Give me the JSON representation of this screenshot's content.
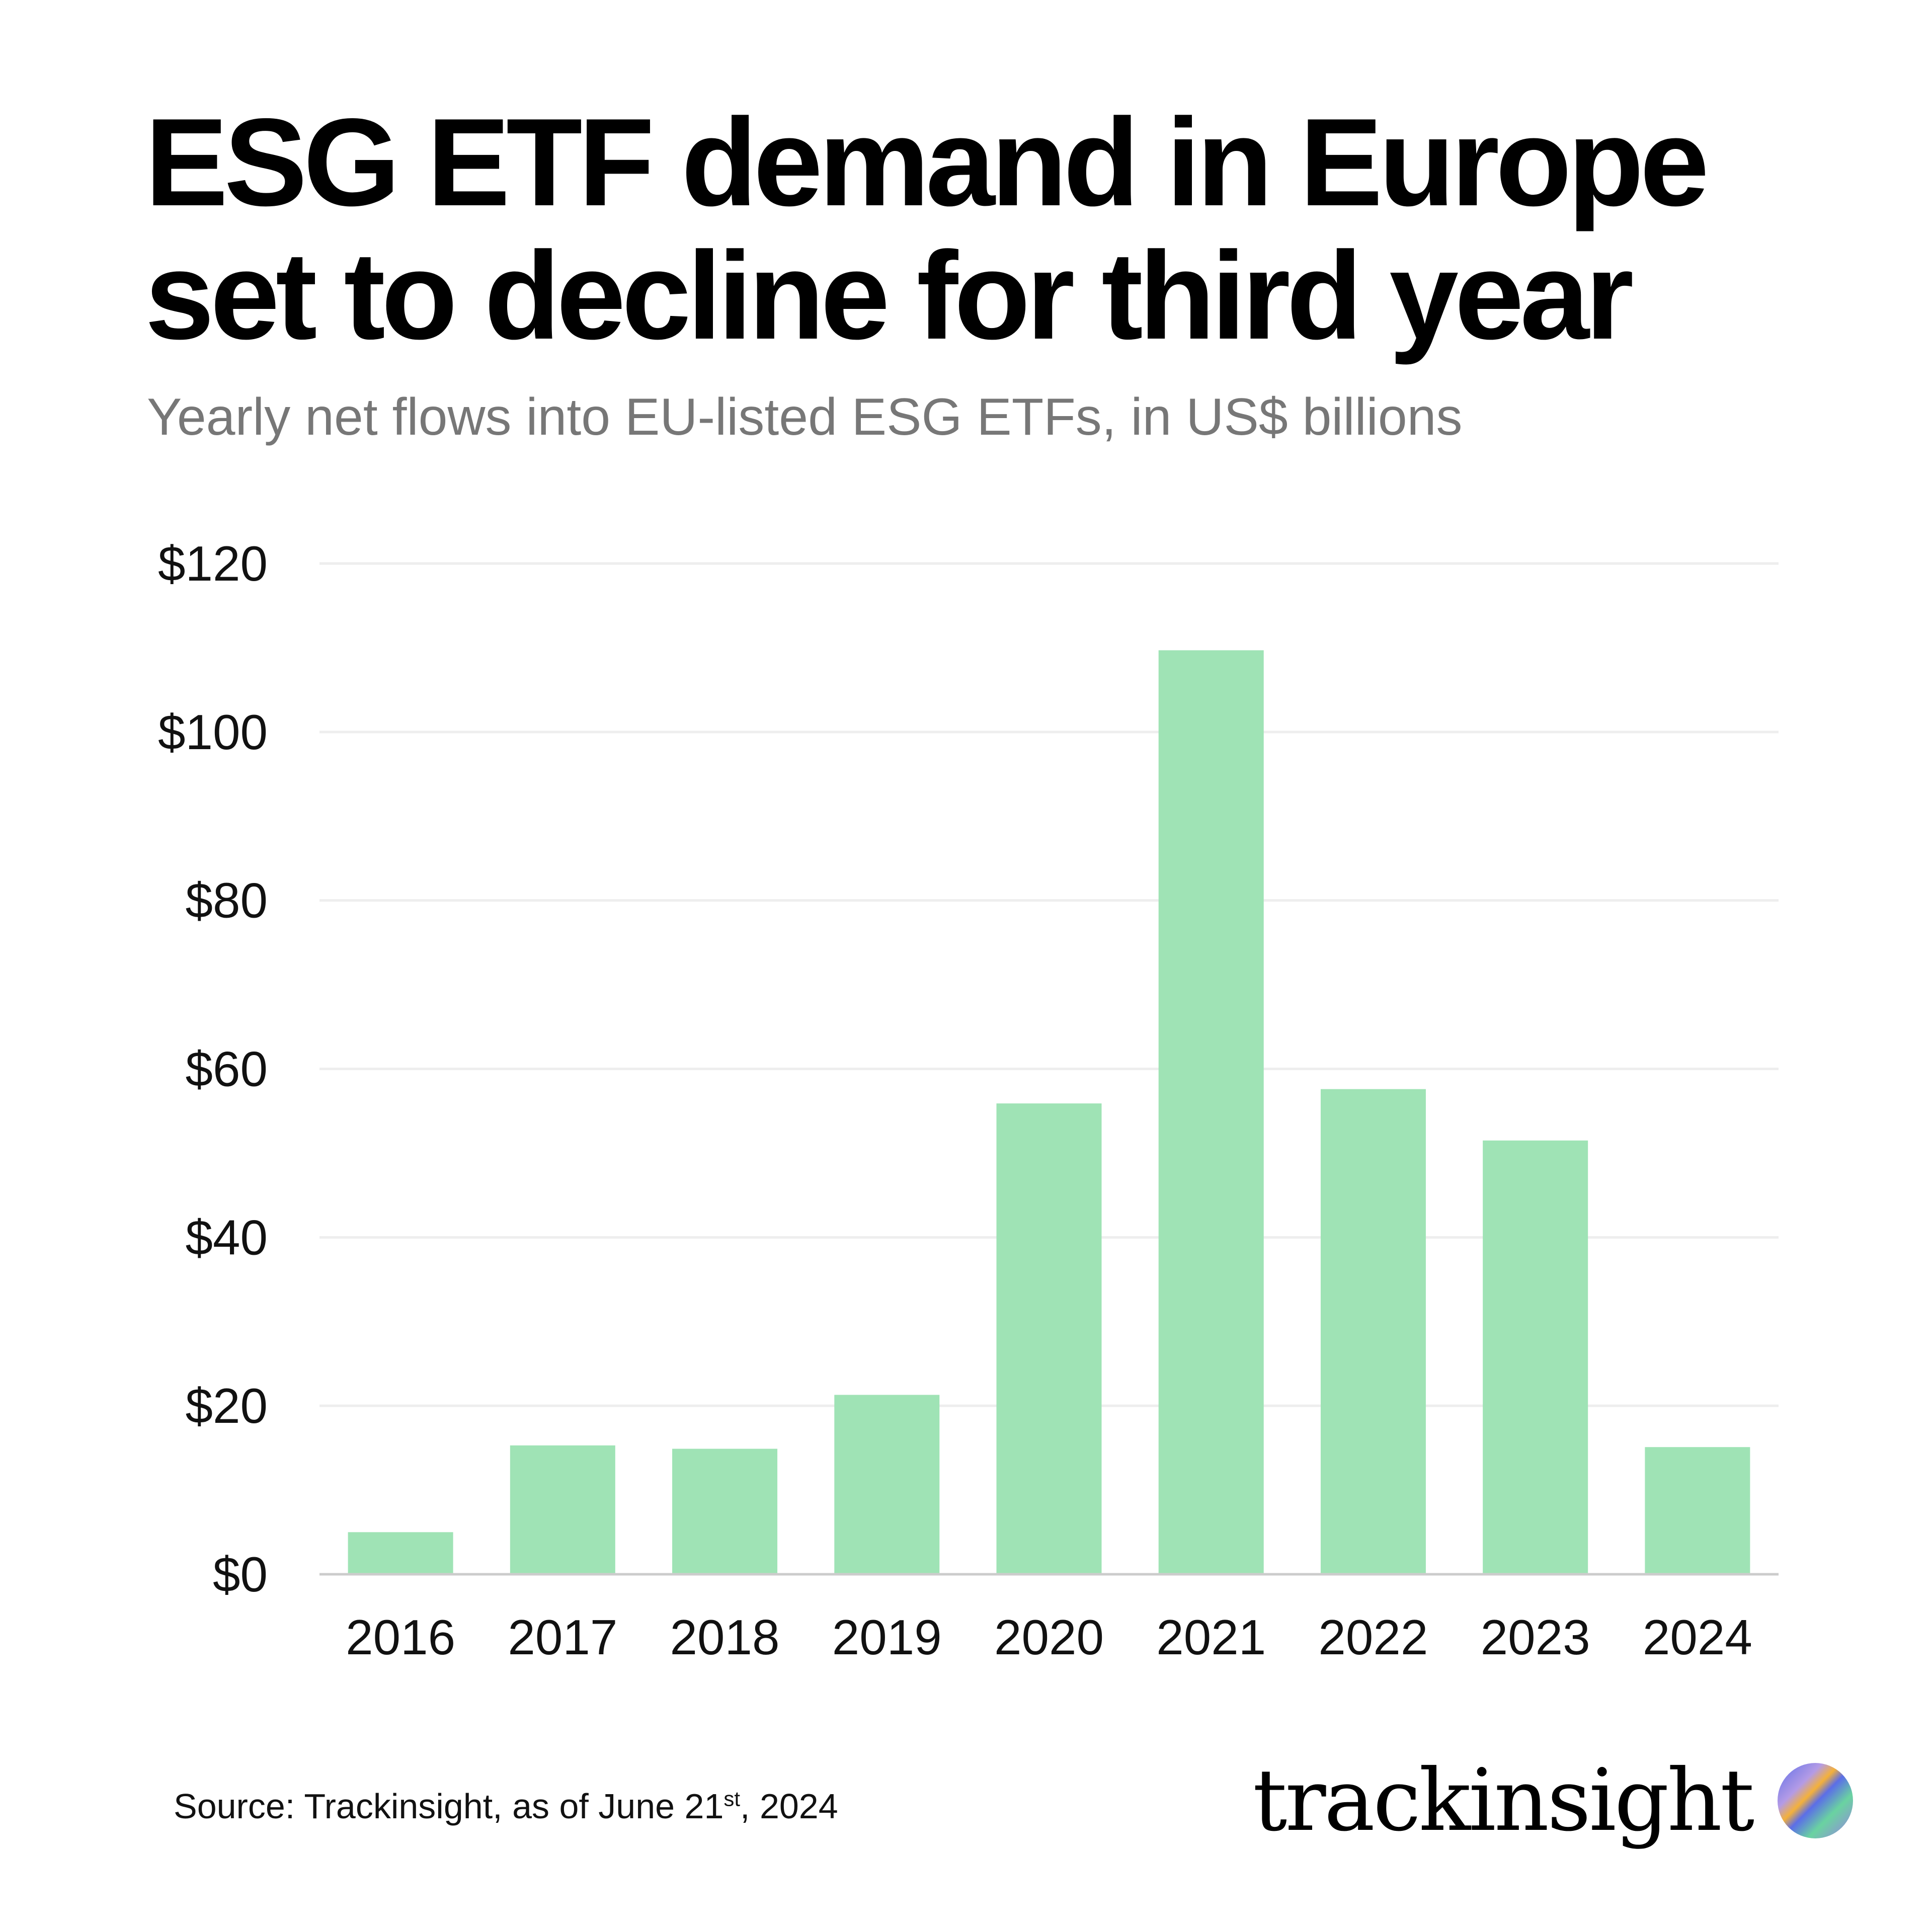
{
  "title": "ESG ETF demand in Europe set to decline for third year",
  "subtitle": "Yearly net flows into EU-listed ESG ETFs, in US$ billions",
  "source": {
    "prefix": "Source: Trackinsight, as of June 21",
    "sup": "st",
    "suffix": ", 2024"
  },
  "logo": {
    "text": "trackinsight",
    "icon": "gradient-orb-icon"
  },
  "colors": {
    "bar": "#9fe3b5",
    "grid": "#eeeeee",
    "axis": "#cccccc"
  },
  "chart_data": {
    "type": "bar",
    "title": "ESG ETF demand in Europe set to decline for third year",
    "subtitle": "Yearly net flows into EU-listed ESG ETFs, in US$ billions",
    "categories": [
      "2016",
      "2017",
      "2018",
      "2019",
      "2020",
      "2021",
      "2022",
      "2023",
      "2024"
    ],
    "values": [
      5.0,
      15.3,
      14.9,
      21.3,
      55.9,
      109.7,
      57.6,
      51.5,
      15.1
    ],
    "ylim": [
      0,
      120
    ],
    "yticks": [
      0,
      20,
      40,
      60,
      80,
      100,
      120
    ],
    "ytick_labels": [
      "$0",
      "$20",
      "$40",
      "$60",
      "$80",
      "$100",
      "$120"
    ],
    "grid": true,
    "xlabel": "",
    "ylabel": ""
  }
}
